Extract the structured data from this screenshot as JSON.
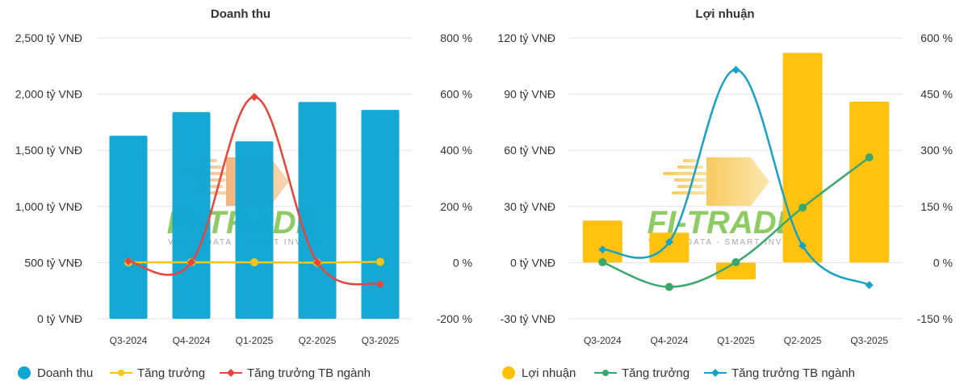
{
  "chart_data": [
    {
      "type": "bar",
      "title": "Doanh thu",
      "categories": [
        "Q3-2024",
        "Q4-2024",
        "Q1-2025",
        "Q2-2025",
        "Q3-2025"
      ],
      "bar_series": {
        "name": "Doanh thu",
        "color": "#0ea5d3",
        "values": [
          1630,
          1840,
          1580,
          1930,
          1860
        ]
      },
      "line_series": [
        {
          "name": "Tăng trưởng",
          "color": "#f5c518",
          "marker": "circle",
          "values": [
            1,
            1,
            1,
            0,
            3
          ]
        },
        {
          "name": "Tăng trưởng TB ngành",
          "color": "#e8443a",
          "marker": "diamond",
          "values": [
            5,
            1,
            590,
            1,
            -77
          ]
        }
      ],
      "y_left": {
        "ticks": [
          "2,500 tỷ VNĐ",
          "2,000 tỷ VNĐ",
          "1,500 tỷ VNĐ",
          "1,000 tỷ VNĐ",
          "500 tỷ VNĐ",
          "0 tỷ VNĐ"
        ],
        "min": 0,
        "max": 2500
      },
      "y_right": {
        "ticks": [
          "800 %",
          "600 %",
          "400 %",
          "200 %",
          "0 %",
          "-200 %"
        ],
        "min": -200,
        "max": 800
      },
      "grid": true,
      "legend": "bottom",
      "watermark": {
        "main": "FI-TRADE",
        "sub": "VALUE DATA - SMART INVEST"
      }
    },
    {
      "type": "bar",
      "title": "Lợi nhuận",
      "categories": [
        "Q3-2024",
        "Q4-2024",
        "Q1-2025",
        "Q2-2025",
        "Q3-2025"
      ],
      "bar_series": {
        "name": "Lợi nhuận",
        "color": "#ffc107",
        "values": [
          22.5,
          16,
          -9,
          112,
          86
        ]
      },
      "line_series": [
        {
          "name": "Tăng trưởng",
          "color": "#3aa76d",
          "marker": "circle",
          "values": [
            1,
            -65,
            1,
            147,
            281
          ]
        },
        {
          "name": "Tăng trưởng TB ngành",
          "color": "#17a2c8",
          "marker": "diamond",
          "values": [
            35,
            55,
            515,
            45,
            -60
          ]
        }
      ],
      "y_left": {
        "ticks": [
          "120 tỷ VNĐ",
          "90 tỷ VNĐ",
          "60 tỷ VNĐ",
          "30 tỷ VNĐ",
          "0 tỷ VNĐ",
          "-30 tỷ VNĐ"
        ],
        "min": -30,
        "max": 120
      },
      "y_right": {
        "ticks": [
          "600 %",
          "450 %",
          "300 %",
          "150 %",
          "0 %",
          "-150 %"
        ],
        "min": -150,
        "max": 600
      },
      "grid": true,
      "legend": "bottom",
      "watermark": {
        "main": "FI-TRADE",
        "sub": "VALUE DATA - SMART INVEST"
      }
    }
  ]
}
